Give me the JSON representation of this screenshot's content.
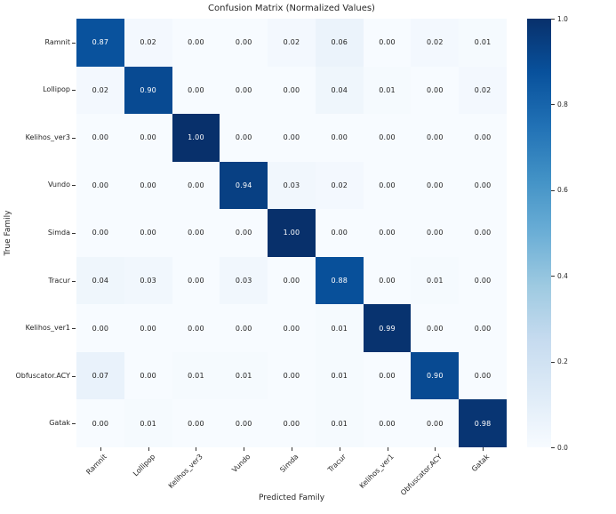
{
  "chart_data": {
    "type": "heatmap",
    "title": "Confusion Matrix (Normalized Values)",
    "xlabel": "Predicted Family",
    "ylabel": "True Family",
    "categories": [
      "Ramnit",
      "Lollipop",
      "Kelihos_ver3",
      "Vundo",
      "Simda",
      "Tracur",
      "Kelihos_ver1",
      "Obfuscator.ACY",
      "Gatak"
    ],
    "matrix": [
      [
        0.87,
        0.02,
        0.0,
        0.0,
        0.02,
        0.06,
        0.0,
        0.02,
        0.01
      ],
      [
        0.02,
        0.9,
        0.0,
        0.0,
        0.0,
        0.04,
        0.01,
        0.0,
        0.02
      ],
      [
        0.0,
        0.0,
        1.0,
        0.0,
        0.0,
        0.0,
        0.0,
        0.0,
        0.0
      ],
      [
        0.0,
        0.0,
        0.0,
        0.94,
        0.03,
        0.02,
        0.0,
        0.0,
        0.0
      ],
      [
        0.0,
        0.0,
        0.0,
        0.0,
        1.0,
        0.0,
        0.0,
        0.0,
        0.0
      ],
      [
        0.04,
        0.03,
        0.0,
        0.03,
        0.0,
        0.88,
        0.0,
        0.01,
        0.0
      ],
      [
        0.0,
        0.0,
        0.0,
        0.0,
        0.0,
        0.01,
        0.99,
        0.0,
        0.0
      ],
      [
        0.07,
        0.0,
        0.01,
        0.01,
        0.0,
        0.01,
        0.0,
        0.9,
        0.0
      ],
      [
        0.0,
        0.01,
        0.0,
        0.0,
        0.0,
        0.01,
        0.0,
        0.0,
        0.98
      ]
    ],
    "value_decimals": 2,
    "vmin": 0.0,
    "vmax": 1.0,
    "colormap": "Blues",
    "colorbar_ticks": [
      1.0,
      0.8,
      0.6,
      0.4,
      0.2,
      0.0
    ],
    "colorbar_position": "right",
    "grid": false
  },
  "colors": {
    "background": "#ffffff",
    "blues_stops": [
      "#f7fbff",
      "#deebf7",
      "#c6dbef",
      "#9ecae1",
      "#6baed6",
      "#4292c6",
      "#2171b5",
      "#08519c",
      "#08306b"
    ],
    "annotation_dark_text": "#222222",
    "annotation_light_text": "#ffffff",
    "tick_color": "#333333"
  }
}
